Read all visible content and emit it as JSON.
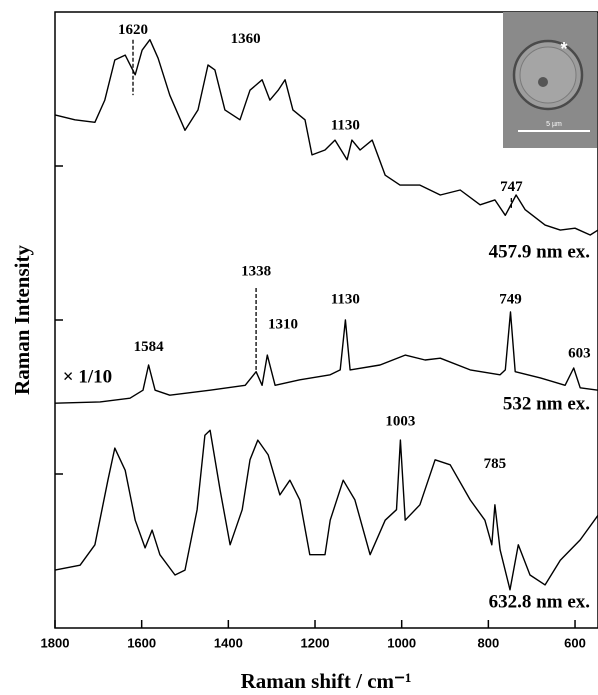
{
  "chart_data": {
    "type": "line",
    "x_label": "Raman shift / cm⁻¹",
    "y_label": "Raman Intensity",
    "xlim": [
      1800,
      547
    ],
    "ylim": [
      0,
      100
    ],
    "xticks": [
      1800,
      1600,
      1400,
      1200,
      1000,
      800,
      600
    ],
    "yticks": [
      25,
      50,
      75
    ],
    "show_ytick_labels": false,
    "color": "#000000",
    "series": [
      {
        "name": "457.9 nm ex.",
        "x": [
          1800,
          1754,
          1708,
          1685,
          1662,
          1638,
          1615,
          1599,
          1581,
          1562,
          1535,
          1500,
          1470,
          1447,
          1431,
          1408,
          1373,
          1350,
          1322,
          1304,
          1285,
          1269,
          1251,
          1223,
          1207,
          1177,
          1154,
          1126,
          1115,
          1096,
          1068,
          1038,
          1004,
          958,
          911,
          865,
          819,
          785,
          761,
          736,
          715,
          669,
          634,
          600,
          565,
          547
        ],
        "values": [
          83.3,
          82.5,
          82.1,
          85.7,
          92.2,
          93.0,
          89.8,
          93.8,
          95.5,
          92.5,
          86.5,
          80.8,
          84.1,
          91.4,
          90.6,
          84.1,
          82.5,
          87.3,
          89.0,
          85.7,
          87.3,
          89.0,
          84.1,
          82.5,
          76.8,
          77.6,
          79.2,
          76.0,
          79.2,
          77.6,
          79.2,
          73.5,
          71.9,
          71.9,
          70.3,
          71.1,
          68.7,
          69.5,
          67.0,
          70.3,
          67.9,
          65.4,
          64.6,
          64.9,
          63.8,
          64.6
        ]
      },
      {
        "name": "532 nm ex.",
        "x": [
          1800,
          1696,
          1627,
          1597,
          1584,
          1569,
          1535,
          1442,
          1361,
          1336,
          1322,
          1310,
          1292,
          1235,
          1165,
          1142,
          1130,
          1119,
          1050,
          992,
          946,
          911,
          842,
          773,
          761,
          749,
          738,
          680,
          623,
          603,
          588,
          547
        ],
        "values": [
          36.5,
          36.7,
          37.3,
          38.6,
          42.7,
          38.6,
          37.8,
          38.6,
          39.4,
          41.6,
          39.4,
          44.3,
          39.4,
          40.3,
          41.1,
          41.9,
          50.0,
          41.9,
          42.7,
          44.3,
          43.5,
          43.8,
          41.9,
          41.1,
          41.9,
          51.3,
          41.6,
          40.6,
          39.4,
          42.2,
          39.0,
          38.6
        ]
      },
      {
        "name": "632.8 nm ex.",
        "x": [
          1800,
          1742,
          1708,
          1678,
          1662,
          1638,
          1615,
          1592,
          1576,
          1558,
          1523,
          1500,
          1472,
          1454,
          1442,
          1419,
          1396,
          1368,
          1350,
          1332,
          1308,
          1281,
          1258,
          1235,
          1212,
          1177,
          1165,
          1135,
          1108,
          1073,
          1038,
          1012,
          1003,
          992,
          958,
          923,
          888,
          842,
          808,
          792,
          785,
          773,
          750,
          731,
          704,
          669,
          634,
          588,
          547
        ],
        "values": [
          9.4,
          10.2,
          13.5,
          24.0,
          29.2,
          25.6,
          17.5,
          13.0,
          15.9,
          11.9,
          8.6,
          9.4,
          19.2,
          31.3,
          32.1,
          22.4,
          13.5,
          19.2,
          27.3,
          30.5,
          28.1,
          21.6,
          24.0,
          20.8,
          11.9,
          11.9,
          17.5,
          24.0,
          20.8,
          11.9,
          17.5,
          19.2,
          30.5,
          17.5,
          20.0,
          27.3,
          26.5,
          20.8,
          17.5,
          13.5,
          20.0,
          12.7,
          6.2,
          13.5,
          8.6,
          7.0,
          11.0,
          14.3,
          18.3
        ]
      }
    ],
    "annotations": [
      {
        "text": "1620",
        "x": 1620,
        "y": 97.0,
        "line": [
          95.5,
          86.5
        ]
      },
      {
        "text": "1360",
        "x": 1360,
        "y": 95.5
      },
      {
        "text": "1130",
        "x": 1130,
        "y": 81.5
      },
      {
        "text": "747",
        "x": 747,
        "y": 71.5,
        "line": [
          69.8,
          68.2
        ]
      },
      {
        "text": "1338",
        "x": 1336,
        "y": 57.8,
        "line": [
          55.2,
          41.9
        ]
      },
      {
        "text": "1310",
        "x": 1274,
        "y": 49.2
      },
      {
        "text": "1130",
        "x": 1130,
        "y": 53.2
      },
      {
        "text": "749",
        "x": 749,
        "y": 53.2
      },
      {
        "text": "1584",
        "x": 1584,
        "y": 45.5
      },
      {
        "text": "603",
        "x": 590,
        "y": 44.5
      },
      {
        "text": "× 1/10",
        "x": 1782,
        "y": 40.6,
        "anchor": "start"
      },
      {
        "text": "1003",
        "x": 1003,
        "y": 33.4
      },
      {
        "text": "785",
        "x": 785,
        "y": 26.5
      }
    ],
    "inset": {
      "marker": "*",
      "scale_label": "5 µm"
    }
  }
}
